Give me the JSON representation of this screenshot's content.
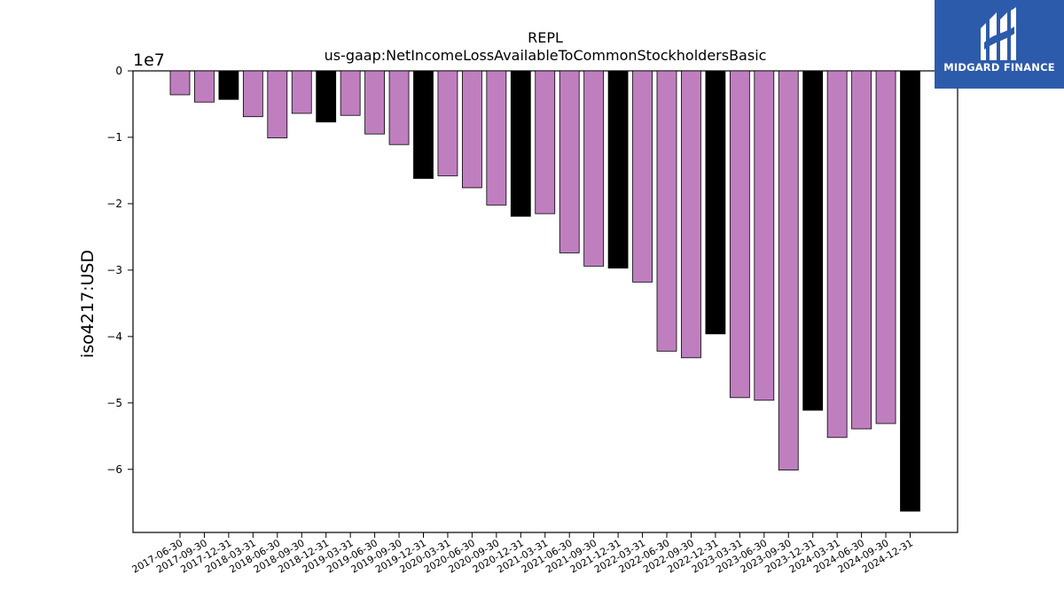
{
  "chart_data": {
    "type": "bar",
    "title": "REPL",
    "subtitle": "us-gaap:NetIncomeLossAvailableToCommonStockholdersBasic",
    "ylabel": "iso4217:USD",
    "xlabel": "",
    "offset_label": "1e7",
    "ylim": [
      -69500000,
      0
    ],
    "yticks": [
      0,
      -10000000,
      -20000000,
      -30000000,
      -40000000,
      -50000000,
      -60000000
    ],
    "ytick_labels": [
      "0",
      "−1",
      "−2",
      "−3",
      "−4",
      "−5",
      "−6"
    ],
    "grid": false,
    "categories": [
      "2017-06-30",
      "2017-09-30",
      "2017-12-31",
      "2018-03-31",
      "2018-06-30",
      "2018-09-30",
      "2018-12-31",
      "2019-03-31",
      "2019-06-30",
      "2019-09-30",
      "2019-12-31",
      "2020-03-31",
      "2020-06-30",
      "2020-09-30",
      "2020-12-31",
      "2021-03-31",
      "2021-06-30",
      "2021-09-30",
      "2021-12-31",
      "2022-03-31",
      "2022-06-30",
      "2022-09-30",
      "2022-12-31",
      "2023-03-31",
      "2023-06-30",
      "2023-09-30",
      "2023-12-31",
      "2024-03-31",
      "2024-06-30",
      "2024-09-30",
      "2024-12-31"
    ],
    "values": [
      -3600000,
      -4700000,
      -4300000,
      -6900000,
      -10100000,
      -6400000,
      -7700000,
      -6700000,
      -9500000,
      -11100000,
      -16200000,
      -15800000,
      -17600000,
      -20200000,
      -21900000,
      -21500000,
      -27400000,
      -29400000,
      -29700000,
      -31800000,
      -42200000,
      -43200000,
      -39600000,
      -49200000,
      -49600000,
      -60100000,
      -51100000,
      -55200000,
      -53900000,
      -53100000,
      -66300000
    ],
    "bar_colors": [
      "#bf7fbf",
      "#bf7fbf",
      "#000000",
      "#bf7fbf",
      "#bf7fbf",
      "#bf7fbf",
      "#000000",
      "#bf7fbf",
      "#bf7fbf",
      "#bf7fbf",
      "#000000",
      "#bf7fbf",
      "#bf7fbf",
      "#bf7fbf",
      "#000000",
      "#bf7fbf",
      "#bf7fbf",
      "#bf7fbf",
      "#000000",
      "#bf7fbf",
      "#bf7fbf",
      "#bf7fbf",
      "#000000",
      "#bf7fbf",
      "#bf7fbf",
      "#bf7fbf",
      "#000000",
      "#bf7fbf",
      "#bf7fbf",
      "#bf7fbf",
      "#000000"
    ]
  },
  "logo": {
    "text": "MIDGARD FINANCE",
    "background": "#2d5bab",
    "icon": "midgard-logo-icon"
  }
}
